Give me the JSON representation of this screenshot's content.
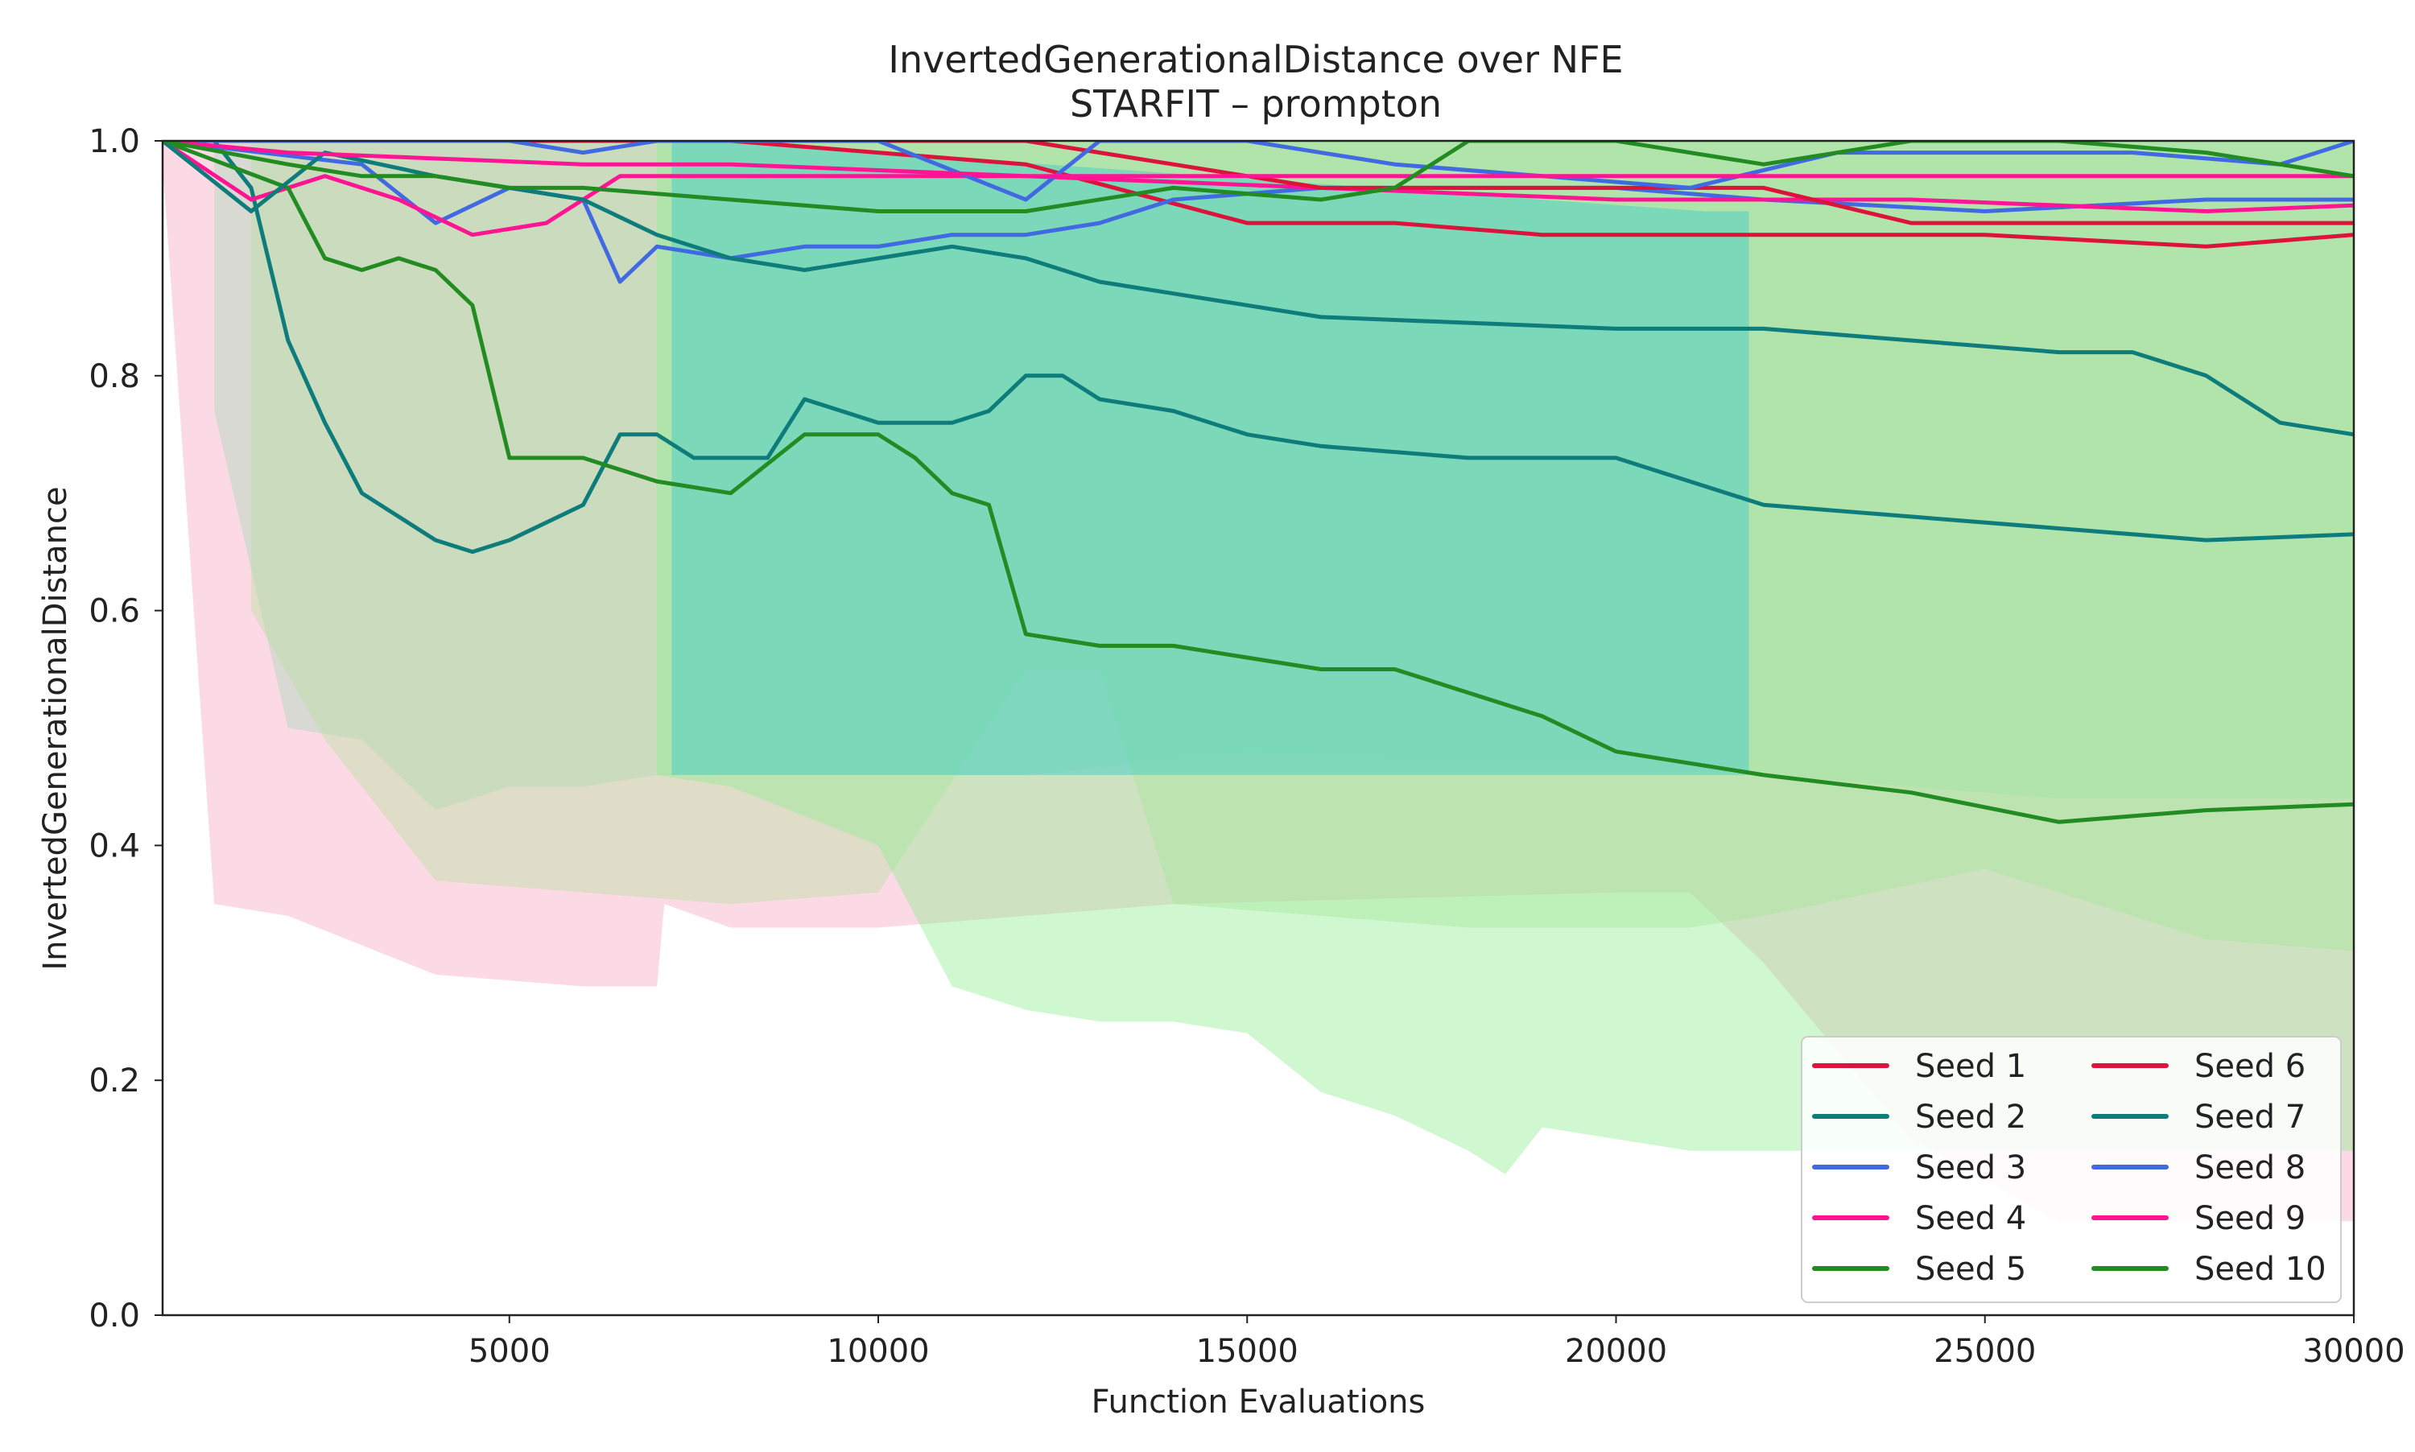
{
  "chart_data": {
    "type": "line",
    "title": "InvertedGenerationalDistance over NFE",
    "subtitle": "STARFIT – prompton",
    "xlabel": "Function Evaluations",
    "ylabel": "InvertedGenerationalDistance",
    "xlim": [
      300,
      30000
    ],
    "ylim": [
      0.0,
      1.0
    ],
    "xticks": [
      5000,
      10000,
      15000,
      20000,
      25000,
      30000
    ],
    "yticks": [
      0.0,
      0.2,
      0.4,
      0.6,
      0.8,
      1.0
    ],
    "xtick_labels": [
      "5000",
      "10000",
      "15000",
      "20000",
      "25000",
      "30000"
    ],
    "ytick_labels": [
      "0.0",
      "0.2",
      "0.4",
      "0.6",
      "0.8",
      "1.0"
    ],
    "grid": false,
    "legend": {
      "position": "lower-right",
      "columns": 2
    },
    "band_colors": [
      "#f9a8c0",
      "#a8d8b8",
      "#b7e0a0",
      "#90ee90",
      "#4ecdc4"
    ],
    "series": [
      {
        "name": "Seed 1",
        "color": "#dc143c",
        "x": [
          300,
          2000,
          5000,
          8000,
          10000,
          12000,
          15000,
          17000,
          19000,
          22000,
          25000,
          28000,
          30000
        ],
        "y": [
          1.0,
          1.0,
          1.0,
          1.0,
          0.99,
          0.98,
          0.93,
          0.93,
          0.92,
          0.92,
          0.92,
          0.91,
          0.92
        ]
      },
      {
        "name": "Seed 2",
        "color": "#0e7c7b",
        "x": [
          1000,
          1500,
          2000,
          2500,
          3000,
          3500,
          4000,
          4500,
          5000,
          6000,
          6500,
          7000,
          7500,
          8000,
          8500,
          9000,
          10000,
          11000,
          11500,
          12000,
          12500,
          13000,
          14000,
          15000,
          16000,
          18000,
          20000,
          21000,
          22000,
          24000,
          26000,
          28000,
          30000
        ],
        "y": [
          1.0,
          0.96,
          0.83,
          0.76,
          0.7,
          0.68,
          0.66,
          0.65,
          0.66,
          0.69,
          0.75,
          0.75,
          0.73,
          0.73,
          0.73,
          0.78,
          0.76,
          0.76,
          0.77,
          0.8,
          0.8,
          0.78,
          0.77,
          0.75,
          0.74,
          0.73,
          0.73,
          0.71,
          0.69,
          0.68,
          0.67,
          0.66,
          0.665
        ]
      },
      {
        "name": "Seed 3",
        "color": "#4169e1",
        "x": [
          300,
          3000,
          4000,
          5000,
          6000,
          6500,
          7000,
          8000,
          9000,
          10000,
          11000,
          12000,
          13000,
          14000,
          16000,
          18000,
          20000,
          22000,
          25000,
          28000,
          30000
        ],
        "y": [
          1.0,
          0.98,
          0.93,
          0.96,
          0.95,
          0.88,
          0.91,
          0.9,
          0.91,
          0.91,
          0.92,
          0.92,
          0.93,
          0.95,
          0.96,
          0.96,
          0.96,
          0.95,
          0.94,
          0.95,
          0.95
        ]
      },
      {
        "name": "Seed 4",
        "color": "#ff1493",
        "x": [
          300,
          1500,
          2500,
          3500,
          4500,
          5500,
          6500,
          8000,
          12000,
          16000,
          20000,
          24000,
          28000,
          30000
        ],
        "y": [
          1.0,
          0.95,
          0.97,
          0.95,
          0.92,
          0.93,
          0.97,
          0.97,
          0.97,
          0.96,
          0.95,
          0.95,
          0.94,
          0.945
        ]
      },
      {
        "name": "Seed 5",
        "color": "#228b22",
        "x": [
          300,
          2000,
          2500,
          3000,
          3500,
          4000,
          4500,
          5000,
          5500,
          6000,
          7000,
          8000,
          9000,
          10000,
          10500,
          11000,
          11500,
          12000,
          13000,
          14000,
          15000,
          16000,
          17000,
          18000,
          19000,
          20000,
          21000,
          22000,
          24000,
          26000,
          28000,
          30000
        ],
        "y": [
          1.0,
          0.96,
          0.9,
          0.89,
          0.9,
          0.89,
          0.86,
          0.73,
          0.73,
          0.73,
          0.71,
          0.7,
          0.75,
          0.75,
          0.73,
          0.7,
          0.69,
          0.58,
          0.57,
          0.57,
          0.56,
          0.55,
          0.55,
          0.53,
          0.51,
          0.48,
          0.47,
          0.46,
          0.445,
          0.42,
          0.43,
          0.435
        ]
      },
      {
        "name": "Seed 6",
        "color": "#dc143c",
        "x": [
          300,
          4000,
          8000,
          10000,
          12000,
          14000,
          16000,
          18000,
          20000,
          22000,
          24000,
          26000,
          28000,
          30000
        ],
        "y": [
          1.0,
          1.0,
          1.0,
          1.0,
          1.0,
          0.98,
          0.96,
          0.96,
          0.96,
          0.96,
          0.93,
          0.93,
          0.93,
          0.93
        ]
      },
      {
        "name": "Seed 7",
        "color": "#0e7c7b",
        "x": [
          300,
          1500,
          2500,
          4000,
          6000,
          7000,
          8000,
          9000,
          10000,
          11000,
          12000,
          13000,
          14000,
          15000,
          16000,
          18000,
          20000,
          22000,
          24000,
          26000,
          27000,
          28000,
          29000,
          30000
        ],
        "y": [
          1.0,
          0.94,
          0.99,
          0.97,
          0.95,
          0.92,
          0.9,
          0.89,
          0.9,
          0.91,
          0.9,
          0.88,
          0.87,
          0.86,
          0.85,
          0.845,
          0.84,
          0.84,
          0.83,
          0.82,
          0.82,
          0.8,
          0.76,
          0.75
        ]
      },
      {
        "name": "Seed 8",
        "color": "#4169e1",
        "x": [
          300,
          5000,
          6000,
          7000,
          10000,
          12000,
          13000,
          15000,
          17000,
          19000,
          21000,
          23000,
          25000,
          27000,
          29000,
          30000
        ],
        "y": [
          1.0,
          1.0,
          0.99,
          1.0,
          1.0,
          0.95,
          1.0,
          1.0,
          0.98,
          0.97,
          0.96,
          0.99,
          0.99,
          0.99,
          0.98,
          1.0
        ]
      },
      {
        "name": "Seed 9",
        "color": "#ff1493",
        "x": [
          300,
          2000,
          6000,
          8000,
          12000,
          16000,
          20000,
          24000,
          28000,
          30000
        ],
        "y": [
          1.0,
          0.99,
          0.98,
          0.98,
          0.97,
          0.97,
          0.97,
          0.97,
          0.97,
          0.97
        ]
      },
      {
        "name": "Seed 10",
        "color": "#228b22",
        "x": [
          300,
          2000,
          3000,
          4000,
          5000,
          6000,
          8000,
          10000,
          12000,
          14000,
          16000,
          17000,
          18000,
          20000,
          22000,
          24000,
          26000,
          28000,
          30000
        ],
        "y": [
          1.0,
          0.98,
          0.97,
          0.97,
          0.96,
          0.96,
          0.95,
          0.94,
          0.94,
          0.96,
          0.95,
          0.96,
          1.0,
          1.0,
          0.98,
          1.0,
          1.0,
          0.99,
          0.97
        ]
      }
    ],
    "bands": [
      {
        "color": "#f9a8c0",
        "x": [
          300,
          1000,
          2000,
          4000,
          6000,
          7000,
          7100,
          8000,
          10000,
          14000,
          20000,
          21000,
          22000,
          24000,
          26000,
          28000,
          30000
        ],
        "lower": [
          0.98,
          0.35,
          0.34,
          0.29,
          0.28,
          0.28,
          0.35,
          0.33,
          0.33,
          0.35,
          0.36,
          0.36,
          0.3,
          0.15,
          0.08,
          0.08,
          0.08
        ],
        "upper": [
          1.0,
          1.0,
          1.0,
          1.0,
          1.0,
          1.0,
          1.0,
          1.0,
          1.0,
          1.0,
          1.0,
          1.0,
          1.0,
          1.0,
          1.0,
          1.0,
          1.0
        ]
      },
      {
        "color": "#a8d8b8",
        "x": [
          1000,
          2000,
          3000,
          4000,
          5000,
          6000,
          7000,
          10000,
          12000,
          15000,
          18000,
          21000,
          22000,
          24000,
          26000,
          28000,
          30000
        ],
        "lower": [
          0.77,
          0.5,
          0.49,
          0.43,
          0.45,
          0.45,
          0.46,
          0.46,
          0.46,
          0.48,
          0.47,
          0.47,
          0.46,
          0.45,
          0.44,
          0.44,
          0.44
        ],
        "upper": [
          1.0,
          1.0,
          1.0,
          1.0,
          1.0,
          1.0,
          1.0,
          1.0,
          1.0,
          1.0,
          1.0,
          1.0,
          1.0,
          1.0,
          1.0,
          1.0,
          1.0
        ]
      },
      {
        "color": "#b7e0a0",
        "x": [
          1500,
          2500,
          4000,
          6000,
          8000,
          10000,
          12000,
          13000,
          14000,
          16000,
          18000,
          20000,
          21000,
          22000,
          25000,
          28000,
          30000
        ],
        "lower": [
          0.6,
          0.49,
          0.37,
          0.36,
          0.35,
          0.36,
          0.55,
          0.55,
          0.35,
          0.34,
          0.33,
          0.33,
          0.33,
          0.34,
          0.38,
          0.32,
          0.31
        ],
        "upper": [
          1.0,
          1.0,
          1.0,
          1.0,
          1.0,
          1.0,
          1.0,
          1.0,
          1.0,
          1.0,
          1.0,
          1.0,
          1.0,
          1.0,
          1.0,
          1.0,
          1.0
        ]
      },
      {
        "color": "#90ee90",
        "x": [
          7000,
          8000,
          10000,
          11000,
          12000,
          13000,
          14000,
          15000,
          16000,
          17000,
          18000,
          18500,
          19000,
          21000,
          22000,
          23000,
          25000,
          27000,
          30000
        ],
        "lower": [
          0.46,
          0.45,
          0.4,
          0.28,
          0.26,
          0.25,
          0.25,
          0.24,
          0.19,
          0.17,
          0.14,
          0.12,
          0.16,
          0.14,
          0.14,
          0.14,
          0.14,
          0.14,
          0.14
        ],
        "upper": [
          1.0,
          1.0,
          1.0,
          1.0,
          1.0,
          1.0,
          1.0,
          1.0,
          1.0,
          1.0,
          1.0,
          1.0,
          1.0,
          1.0,
          1.0,
          1.0,
          1.0,
          1.0,
          1.0
        ]
      },
      {
        "color": "#4ecdc4",
        "x": [
          7200,
          7500,
          7800,
          21200,
          21500,
          21800
        ],
        "lower": [
          0.46,
          0.46,
          0.46,
          0.46,
          0.46,
          0.46
        ],
        "upper": [
          1.0,
          1.0,
          1.0,
          0.94,
          0.94,
          0.94
        ]
      }
    ]
  }
}
